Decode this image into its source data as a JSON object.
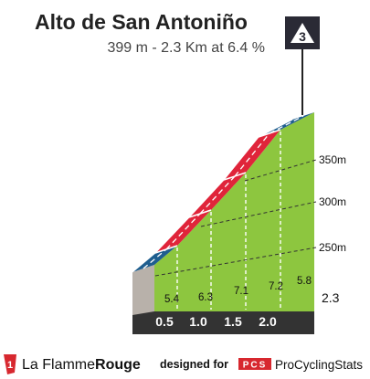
{
  "header": {
    "title": "Alto de San Antoniño",
    "subtitle": "399 m - 2.3 Km at 6.4 %",
    "category_badge": "3"
  },
  "footer": {
    "brand_mark": "1",
    "brand_left": "La Flamme",
    "brand_right": "Rouge",
    "designed_by": "designed for",
    "pcs_mark": "PCS",
    "pcs_name": "ProCyclingStats"
  },
  "colors": {
    "grass": "#8dc63f",
    "red": "#e0243a",
    "blue": "#1f5e8f",
    "dark": "#333333",
    "gray": "#b8b1aa"
  },
  "chart_data": {
    "type": "area",
    "title": "Alto de San Antoniño",
    "subtitle": "399 m - 2.3 Km at 6.4 %",
    "x_ticks": [
      "0.5",
      "1.0",
      "1.5",
      "2.0"
    ],
    "end_label": "2.3",
    "altitude_labels": [
      "250m",
      "300m",
      "350m"
    ],
    "segments": [
      {
        "from_km": 0.0,
        "to_km": 0.5,
        "gradient": "5.4",
        "color": "blue"
      },
      {
        "from_km": 0.5,
        "to_km": 1.0,
        "gradient": "6.3",
        "color": "red"
      },
      {
        "from_km": 1.0,
        "to_km": 1.5,
        "gradient": "7.1",
        "color": "red"
      },
      {
        "from_km": 1.5,
        "to_km": 2.0,
        "gradient": "7.2",
        "color": "red"
      },
      {
        "from_km": 2.0,
        "to_km": 2.3,
        "gradient": "5.8",
        "color": "blue"
      }
    ]
  }
}
